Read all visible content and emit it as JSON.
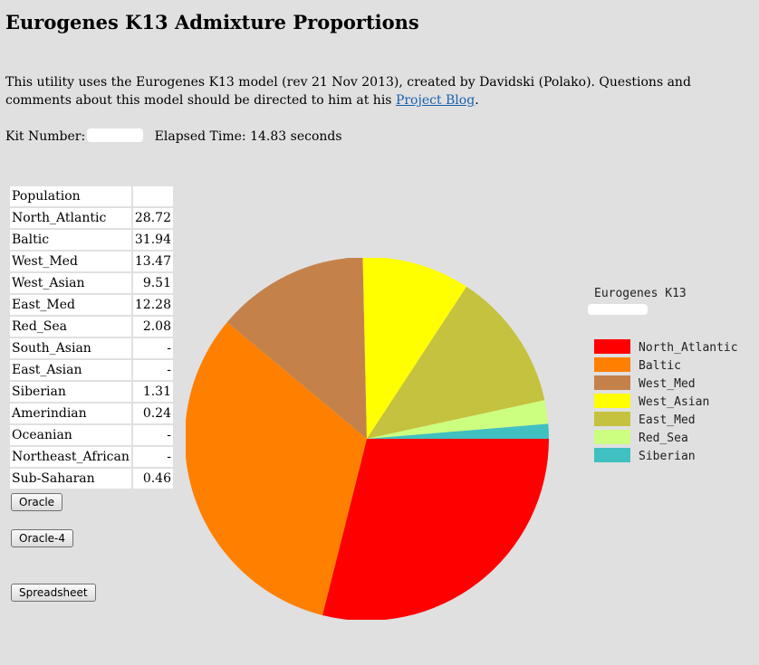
{
  "header": {
    "title": "Eurogenes K13 Admixture Proportions"
  },
  "intro": {
    "text_before_link": "This utility uses the Eurogenes K13 model (rev 21 Nov 2013), created by Davidski (Polako). Questions and comments about this model should be directed to him at his ",
    "link_label": "Project Blog",
    "text_after_link": "."
  },
  "kit": {
    "kit_label": "Kit Number:",
    "elapsed_label": "Elapsed Time: 14.83 seconds"
  },
  "table": {
    "header": [
      "Population",
      ""
    ],
    "rows": [
      {
        "name": "North_Atlantic",
        "value": "28.72"
      },
      {
        "name": "Baltic",
        "value": "31.94"
      },
      {
        "name": "West_Med",
        "value": "13.47"
      },
      {
        "name": "West_Asian",
        "value": "9.51"
      },
      {
        "name": "East_Med",
        "value": "12.28"
      },
      {
        "name": "Red_Sea",
        "value": "2.08"
      },
      {
        "name": "South_Asian",
        "value": "-"
      },
      {
        "name": "East_Asian",
        "value": "-"
      },
      {
        "name": "Siberian",
        "value": "1.31"
      },
      {
        "name": "Amerindian",
        "value": "0.24"
      },
      {
        "name": "Oceanian",
        "value": "-"
      },
      {
        "name": "Northeast_African",
        "value": "-"
      },
      {
        "name": "Sub-Saharan",
        "value": "0.46"
      }
    ]
  },
  "buttons": {
    "oracle": "Oracle",
    "oracle4": "Oracle-4",
    "spreadsheet": "Spreadsheet"
  },
  "chart_data": {
    "type": "pie",
    "title": "Eurogenes K13",
    "legend_position": "right",
    "categories": [
      "North_Atlantic",
      "Baltic",
      "West_Med",
      "West_Asian",
      "East_Med",
      "Red_Sea",
      "Siberian"
    ],
    "values": [
      28.72,
      31.94,
      13.47,
      9.51,
      12.28,
      2.08,
      1.31
    ],
    "colors": [
      "#ff0000",
      "#ff8000",
      "#c4824a",
      "#ffff00",
      "#c4c23e",
      "#ccff80",
      "#40c0c0"
    ]
  }
}
